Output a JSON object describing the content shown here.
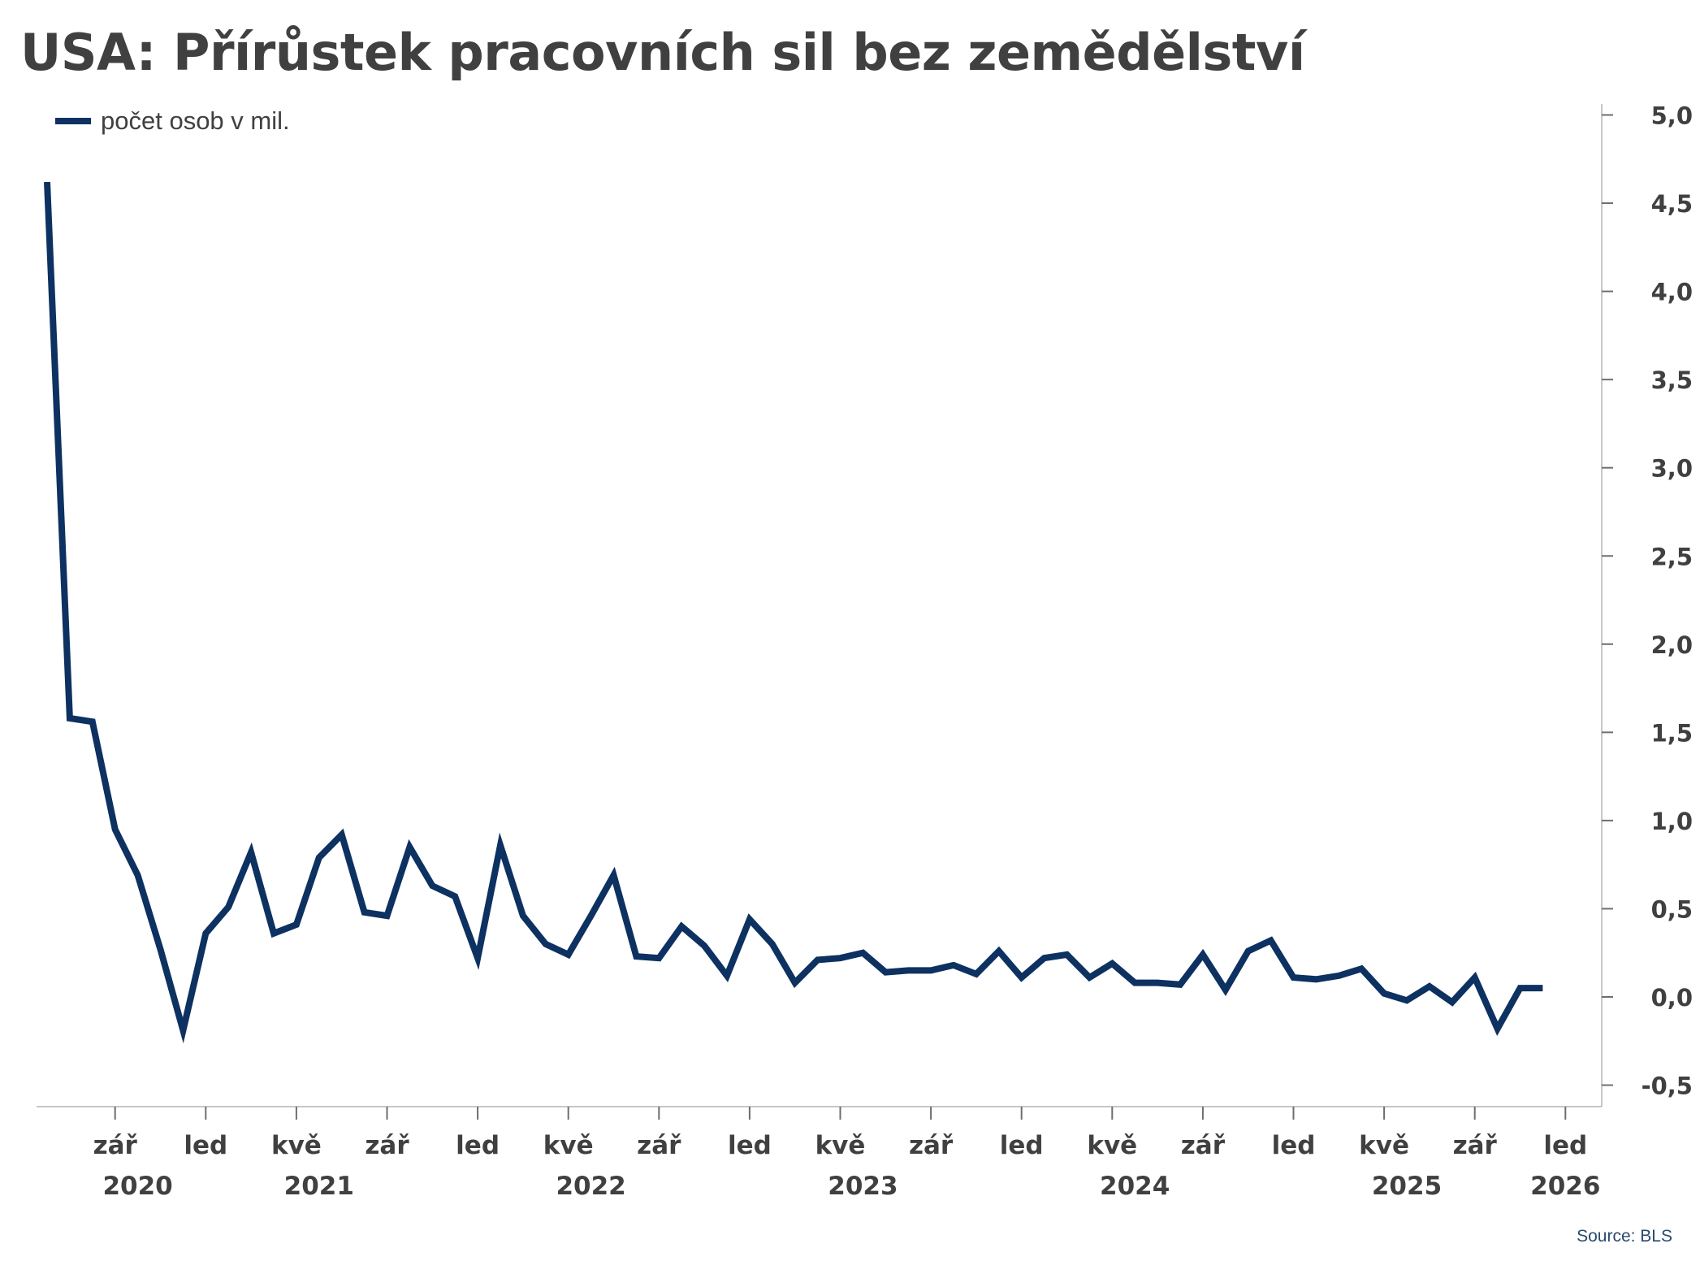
{
  "chart_data": {
    "type": "line",
    "title": "USA: Přírůstek pracovních sil bez zemědělství",
    "legend": {
      "placement": "top-left",
      "entries": [
        "počet osob v mil."
      ]
    },
    "x_tick_labels": [
      {
        "label": "zář",
        "date": "2020-09"
      },
      {
        "label": "led",
        "date": "2021-01"
      },
      {
        "label": "kvě",
        "date": "2021-05"
      },
      {
        "label": "zář",
        "date": "2021-09"
      },
      {
        "label": "led",
        "date": "2022-01"
      },
      {
        "label": "kvě",
        "date": "2022-05"
      },
      {
        "label": "zář",
        "date": "2022-09"
      },
      {
        "label": "led",
        "date": "2023-01"
      },
      {
        "label": "kvě",
        "date": "2023-05"
      },
      {
        "label": "zář",
        "date": "2023-09"
      },
      {
        "label": "led",
        "date": "2024-01"
      },
      {
        "label": "kvě",
        "date": "2024-05"
      },
      {
        "label": "zář",
        "date": "2024-09"
      },
      {
        "label": "led",
        "date": "2025-01"
      },
      {
        "label": "kvě",
        "date": "2025-05"
      },
      {
        "label": "zář",
        "date": "2025-09"
      },
      {
        "label": "led",
        "date": "2026-01"
      }
    ],
    "year_labels": [
      {
        "label": "2020",
        "date": "2020-10"
      },
      {
        "label": "2021",
        "date": "2021-06"
      },
      {
        "label": "2022",
        "date": "2022-06"
      },
      {
        "label": "2023",
        "date": "2023-06"
      },
      {
        "label": "2024",
        "date": "2024-06"
      },
      {
        "label": "2025",
        "date": "2025-06"
      },
      {
        "label": "2026",
        "date": "2026-01"
      }
    ],
    "y_axis": {
      "position": "right",
      "min": -0.5,
      "max": 5.0,
      "step": 0.5,
      "tick_labels": [
        "-0,5",
        "0,0",
        "0,5",
        "1,0",
        "1,5",
        "2,0",
        "2,5",
        "3,0",
        "3,5",
        "4,0",
        "4,5",
        "5,0"
      ]
    },
    "grid": false,
    "line_color": "#0d3160",
    "source": "Source: BLS",
    "series": [
      {
        "name": "počet osob v mil.",
        "x": [
          "2020-06",
          "2020-07",
          "2020-08",
          "2020-09",
          "2020-10",
          "2020-11",
          "2020-12",
          "2021-01",
          "2021-02",
          "2021-03",
          "2021-04",
          "2021-05",
          "2021-06",
          "2021-07",
          "2021-08",
          "2021-09",
          "2021-10",
          "2021-11",
          "2021-12",
          "2022-01",
          "2022-02",
          "2022-03",
          "2022-04",
          "2022-05",
          "2022-06",
          "2022-07",
          "2022-08",
          "2022-09",
          "2022-10",
          "2022-11",
          "2022-12",
          "2023-01",
          "2023-02",
          "2023-03",
          "2023-04",
          "2023-05",
          "2023-06",
          "2023-07",
          "2023-08",
          "2023-09",
          "2023-10",
          "2023-11",
          "2023-12",
          "2024-01",
          "2024-02",
          "2024-03",
          "2024-04",
          "2024-05",
          "2024-06",
          "2024-07",
          "2024-08",
          "2024-09",
          "2024-10",
          "2024-11",
          "2024-12",
          "2025-01",
          "2025-02",
          "2025-03",
          "2025-04",
          "2025-05",
          "2025-06",
          "2025-07",
          "2025-08",
          "2025-09",
          "2025-10",
          "2025-11",
          "2025-12"
        ],
        "values": [
          4.62,
          1.58,
          1.56,
          0.95,
          0.69,
          0.27,
          -0.19,
          0.36,
          0.51,
          0.82,
          0.36,
          0.41,
          0.79,
          0.92,
          0.48,
          0.46,
          0.85,
          0.63,
          0.57,
          0.22,
          0.86,
          0.46,
          0.3,
          0.24,
          0.46,
          0.69,
          0.23,
          0.22,
          0.4,
          0.29,
          0.12,
          0.44,
          0.3,
          0.08,
          0.21,
          0.22,
          0.25,
          0.14,
          0.15,
          0.15,
          0.18,
          0.13,
          0.26,
          0.11,
          0.22,
          0.24,
          0.11,
          0.19,
          0.08,
          0.08,
          0.07,
          0.24,
          0.04,
          0.26,
          0.32,
          0.11,
          0.1,
          0.12,
          0.16,
          0.02,
          -0.02,
          0.06,
          -0.03,
          0.11,
          -0.18,
          0.05,
          0.05
        ]
      }
    ]
  }
}
